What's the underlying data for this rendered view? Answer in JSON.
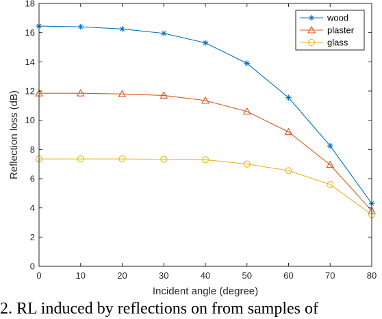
{
  "chart_data": {
    "type": "line",
    "xlabel": "Incident angle (degree)",
    "ylabel": "Reflection loss (dB)",
    "xlim": [
      0,
      80
    ],
    "ylim": [
      0,
      18
    ],
    "x_ticks": [
      0,
      10,
      20,
      30,
      40,
      50,
      60,
      70,
      80
    ],
    "y_ticks": [
      0,
      2,
      4,
      6,
      8,
      10,
      12,
      14,
      16,
      18
    ],
    "grid": false,
    "legend_position": "top-right",
    "x": [
      0,
      10,
      20,
      30,
      40,
      50,
      60,
      70,
      80
    ],
    "series": [
      {
        "name": "wood",
        "color": "#0072bd",
        "marker": "asterisk",
        "values": [
          16.45,
          16.4,
          16.25,
          15.95,
          15.3,
          13.9,
          11.55,
          8.25,
          4.3
        ]
      },
      {
        "name": "plaster",
        "color": "#d95319",
        "marker": "triangle",
        "values": [
          11.85,
          11.85,
          11.8,
          11.7,
          11.35,
          10.6,
          9.2,
          6.95,
          3.8
        ]
      },
      {
        "name": "glass",
        "color": "#edb120",
        "marker": "circle",
        "values": [
          7.35,
          7.35,
          7.35,
          7.33,
          7.3,
          7.0,
          6.55,
          5.6,
          3.55
        ]
      }
    ]
  },
  "caption": "2.  RL induced by reflections on from samples of"
}
